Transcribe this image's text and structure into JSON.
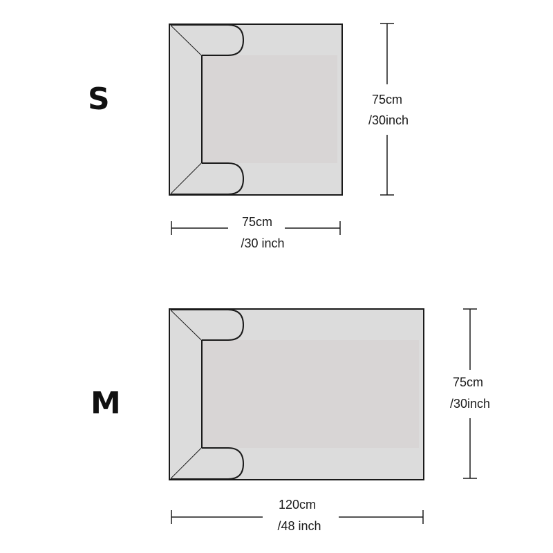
{
  "sizes": [
    {
      "label": "S",
      "width_cm": "75cm",
      "width_in": "/30 inch",
      "height_cm": "75cm",
      "height_in": "/30inch"
    },
    {
      "label": "M",
      "width_cm": "120cm",
      "width_in": "/48 inch",
      "height_cm": "75cm",
      "height_in": "/30inch"
    }
  ],
  "colors": {
    "outline": "#1a1a1a",
    "sofa_fill": "#dcdcdc",
    "seat_fill": "#d6d0d0",
    "dimension_line": "#1a1a1a"
  },
  "icons": [
    "sofa-cover-outline"
  ]
}
